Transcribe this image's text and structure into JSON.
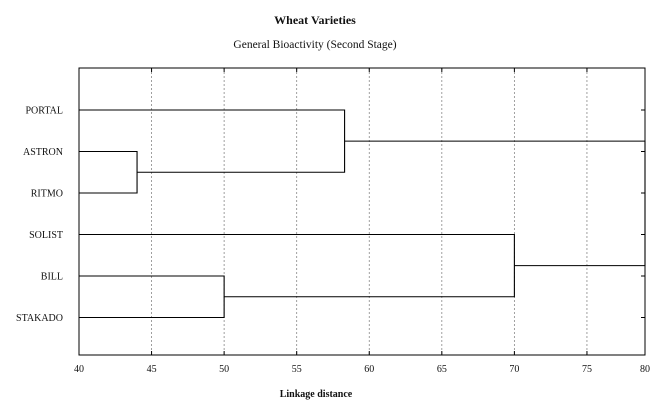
{
  "chart_data": {
    "type": "dendrogram",
    "orientation": "horizontal",
    "title": "Wheat Varieties",
    "subtitle": "General Bioactivity (Second Stage)",
    "xlabel": "Linkage distance",
    "xlim": [
      40,
      79
    ],
    "xticks": [
      "40",
      "45",
      "50",
      "55",
      "60",
      "65",
      "70",
      "75",
      "80"
    ],
    "grid": true,
    "leaves": [
      "PORTAL",
      "ASTRON",
      "RITMO",
      "SOLIST",
      "BILL",
      "STAKADO"
    ],
    "merges": [
      {
        "a": "ASTRON",
        "b": "RITMO",
        "distance": 44
      },
      {
        "a": "BILL",
        "b": "STAKADO",
        "distance": 50
      },
      {
        "a": "PORTAL",
        "b": "ASTRON+RITMO",
        "distance": 58.3
      },
      {
        "a": "SOLIST",
        "b": "BILL+STAKADO",
        "distance": 70
      },
      {
        "a": "PORTAL+ASTRON+RITMO",
        "b": "SOLIST+BILL+STAKADO",
        "distance": 79
      }
    ]
  }
}
